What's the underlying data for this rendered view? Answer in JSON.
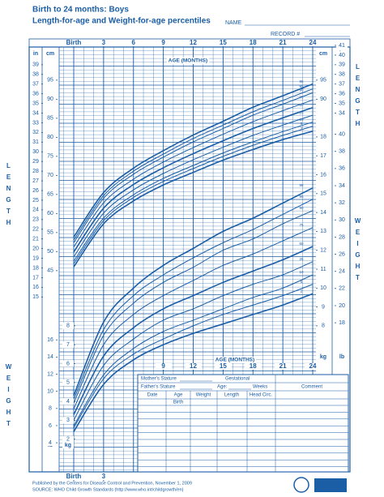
{
  "header": {
    "title": "Birth to 24 months: Boys",
    "subtitle": "Length-for-age and Weight-for-age percentiles",
    "name_label": "NAME",
    "record_label": "RECORD #"
  },
  "side_labels": {
    "length": "LENGTH",
    "weight": "WEIGHT"
  },
  "chart_data": [
    {
      "type": "line",
      "xlabel": "AGE (MONTHS)",
      "xlim": [
        0,
        24
      ],
      "x": [
        0,
        3,
        6,
        9,
        12,
        15,
        18,
        21,
        24
      ],
      "xticks": [
        {
          "value": 0,
          "label": "Birth"
        },
        3,
        6,
        9,
        12,
        15,
        18,
        21,
        24
      ],
      "ylim": [
        37.3,
        103.7
      ],
      "axes": [
        {
          "label": "in",
          "side": "left",
          "lim": [
            14.69,
            40.83
          ],
          "ticks": [
            15,
            16,
            17,
            18,
            19,
            20,
            21,
            22,
            23,
            24,
            25,
            26,
            27,
            28,
            29,
            30,
            31,
            32,
            33,
            34,
            35,
            36,
            37,
            38,
            39
          ]
        },
        {
          "label": "cm",
          "side": "left",
          "lim": [
            37.3,
            103.7
          ],
          "ticks": [
            45,
            50,
            55,
            60,
            65,
            70,
            75,
            80,
            85,
            90,
            95
          ]
        },
        {
          "label": "cm",
          "side": "right",
          "lim": [
            37.3,
            103.7
          ],
          "ticks": [
            90,
            95
          ]
        },
        {
          "label": "in",
          "side": "right",
          "lim": [
            14.69,
            40.83
          ],
          "ticks": [
            34,
            35,
            36,
            37,
            38,
            39,
            40,
            41
          ]
        }
      ],
      "series": [
        {
          "name": "98",
          "color": "#1b5ea6",
          "values": [
            53.8,
            65.5,
            71.9,
            76.5,
            80.6,
            84.2,
            87.9,
            90.9,
            94.0
          ]
        },
        {
          "name": "95",
          "color": "#1b5ea6",
          "values": [
            53.0,
            64.7,
            71.1,
            75.6,
            79.7,
            83.2,
            86.7,
            89.7,
            92.7
          ]
        },
        {
          "name": "90",
          "color": "#1b5ea6",
          "values": [
            52.3,
            64.0,
            70.3,
            74.8,
            78.8,
            82.3,
            85.8,
            88.7,
            91.7
          ]
        },
        {
          "name": "75",
          "color": "#1b5ea6",
          "values": [
            51.2,
            62.8,
            69.0,
            73.5,
            77.3,
            80.8,
            84.1,
            87.0,
            89.8
          ]
        },
        {
          "name": "50",
          "color": "#1b5ea6",
          "values": [
            49.9,
            61.4,
            67.6,
            72.0,
            75.7,
            79.1,
            82.3,
            85.1,
            87.8
          ]
        },
        {
          "name": "25",
          "color": "#1b5ea6",
          "values": [
            48.6,
            60.1,
            66.2,
            70.5,
            74.1,
            77.4,
            80.5,
            83.2,
            85.8
          ]
        },
        {
          "name": "10",
          "color": "#1b5ea6",
          "values": [
            47.5,
            58.8,
            64.9,
            69.2,
            72.6,
            75.9,
            78.8,
            81.5,
            84.0
          ]
        },
        {
          "name": "5",
          "color": "#1b5ea6",
          "values": [
            46.8,
            58.1,
            64.2,
            68.4,
            71.8,
            75.0,
            77.9,
            80.5,
            82.9
          ]
        },
        {
          "name": "2",
          "color": "#1b5ea6",
          "values": [
            46.0,
            57.3,
            63.3,
            67.5,
            70.8,
            74.0,
            76.8,
            79.4,
            81.6
          ]
        }
      ]
    },
    {
      "type": "line",
      "xlabel": "AGE (MONTHS)",
      "xlim": [
        0,
        24
      ],
      "x": [
        0,
        3,
        6,
        9,
        12,
        15,
        18,
        21,
        24
      ],
      "xticks": [
        9,
        12,
        15,
        18,
        21,
        24
      ],
      "xticks_bottom": [
        {
          "value": 0,
          "label": "Birth"
        },
        3
      ],
      "ylim": [
        0.27,
        22.76
      ],
      "axes": [
        {
          "label": "lb",
          "side": "left",
          "lim": [
            0.6,
            50.18
          ],
          "ticks": [
            4,
            6,
            8,
            10,
            12,
            14,
            16
          ]
        },
        {
          "label": "kg",
          "side": "left",
          "lim": [
            0.27,
            22.76
          ],
          "ticks": [
            2,
            3,
            4,
            5,
            6,
            7,
            8
          ]
        },
        {
          "label": "kg",
          "side": "right",
          "lim": [
            0.27,
            22.76
          ],
          "ticks": [
            8,
            9,
            10,
            11,
            12,
            13,
            14,
            15,
            16,
            17,
            18
          ]
        },
        {
          "label": "lb",
          "side": "right",
          "lim": [
            0.6,
            50.18
          ],
          "ticks": [
            18,
            20,
            22,
            24,
            26,
            28,
            30,
            32,
            34,
            36,
            38,
            40
          ]
        }
      ],
      "series": [
        {
          "name": "98",
          "color": "#1b5ea6",
          "values": [
            4.3,
            8.2,
            10.0,
            11.2,
            12.1,
            13.0,
            13.7,
            14.5,
            15.3
          ]
        },
        {
          "name": "95",
          "color": "#1b5ea6",
          "values": [
            4.1,
            7.8,
            9.6,
            10.7,
            11.6,
            12.4,
            13.1,
            13.9,
            14.7
          ]
        },
        {
          "name": "90",
          "color": "#1b5ea6",
          "values": [
            3.9,
            7.5,
            9.2,
            10.3,
            11.1,
            12.0,
            12.6,
            13.4,
            14.1
          ]
        },
        {
          "name": "75",
          "color": "#1b5ea6",
          "values": [
            3.6,
            7.0,
            8.6,
            9.6,
            10.4,
            11.2,
            11.8,
            12.5,
            13.2
          ]
        },
        {
          "name": "50",
          "color": "#1b5ea6",
          "values": [
            3.3,
            6.4,
            7.9,
            8.9,
            9.6,
            10.3,
            10.9,
            11.5,
            12.2
          ]
        },
        {
          "name": "25",
          "color": "#1b5ea6",
          "values": [
            3.0,
            5.9,
            7.3,
            8.3,
            8.9,
            9.6,
            10.2,
            10.7,
            11.4
          ]
        },
        {
          "name": "10",
          "color": "#1b5ea6",
          "values": [
            2.7,
            5.4,
            6.8,
            7.7,
            8.3,
            8.9,
            9.5,
            10.0,
            10.7
          ]
        },
        {
          "name": "5",
          "color": "#1b5ea6",
          "values": [
            2.6,
            5.2,
            6.5,
            7.3,
            8.0,
            8.6,
            9.1,
            9.6,
            10.2
          ]
        },
        {
          "name": "2",
          "color": "#1b5ea6",
          "values": [
            2.4,
            4.9,
            6.2,
            7.0,
            7.6,
            8.1,
            8.6,
            9.1,
            9.7
          ]
        }
      ]
    }
  ],
  "record_table": {
    "mother": "Mother's Stature",
    "gestational": "Gestational",
    "father": "Father's Stature",
    "age": "Age:",
    "weeks": "Weeks",
    "comment": "Comment",
    "columns": [
      "Date",
      "Age",
      "Weight",
      "Length",
      "Head Circ."
    ],
    "first_row_age": "Birth"
  },
  "footer": [
    "Published by the Centers for Disease Control and Prevention, November 1, 2009",
    "SOURCE: WHO Child Growth Standards (http://www.who.int/childgrowth/en)"
  ]
}
